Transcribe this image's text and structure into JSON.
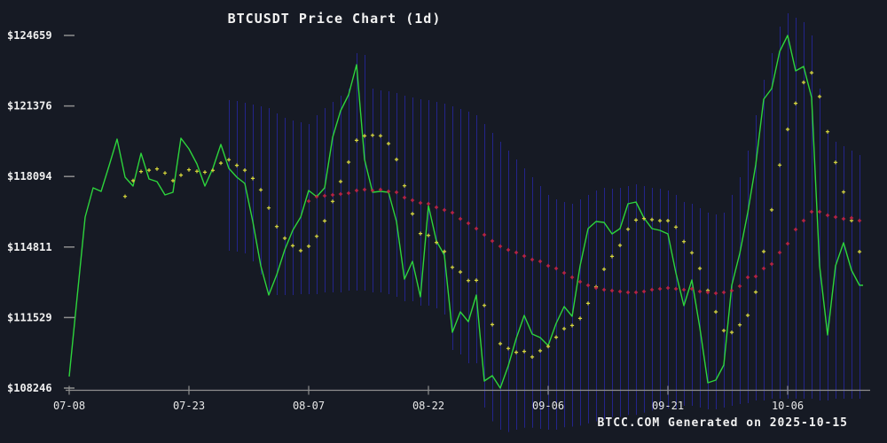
{
  "window": {
    "title": "BTCUSDT Price Chart (1d)"
  },
  "footer": {
    "credit": "BTCC.COM Generated on 2025-10-15"
  },
  "colors": {
    "background": "#161a24",
    "close_line": "#2dd43c",
    "ma7_dots": "#d9d93a",
    "ma30_dots": "#cf2340",
    "range_bars": "#23248a",
    "axis": "#8f8f8f",
    "label_text": "#f0f0f0"
  },
  "chart_data": {
    "type": "line",
    "title": "BTCUSDT Price Chart (1d)",
    "xlabel": "",
    "ylabel": "",
    "grid": "vertical-range-bars-only",
    "legend": "none",
    "x_start_date": "2025-07-08",
    "x_end_date": "2025-10-15",
    "days": 100,
    "y_ticks": [
      124659,
      121376,
      118094,
      114811,
      111529,
      108246
    ],
    "y_tick_labels": [
      "$124659",
      "$121376",
      "$118094",
      "$114811",
      "$111529",
      "$108246"
    ],
    "x_tick_indices": [
      0,
      15,
      30,
      45,
      60,
      75,
      90
    ],
    "x_tick_labels": [
      "07-08",
      "07-23",
      "08-07",
      "08-22",
      "09-06",
      "09-21",
      "10-06"
    ],
    "ylim": [
      108246,
      124659
    ],
    "series": [
      {
        "name": "close",
        "style": "line",
        "color": "#2dd43c",
        "values": [
          108781,
          112493,
          116205,
          117566,
          117401,
          118597,
          119834,
          118061,
          117648,
          119174,
          117978,
          117855,
          117236,
          117360,
          119875,
          119380,
          118679,
          117648,
          118473,
          119587,
          118473,
          118061,
          117772,
          115999,
          113937,
          112576,
          113524,
          114679,
          115586,
          116205,
          117442,
          117153,
          117566,
          119916,
          121154,
          121896,
          123298,
          118885,
          117360,
          117401,
          117360,
          115999,
          113318,
          114143,
          112493,
          116741,
          115092,
          114432,
          110844,
          111792,
          111339,
          112576,
          108576,
          108823,
          108246,
          109277,
          110555,
          111627,
          110761,
          110596,
          110225,
          111256,
          112040,
          111586,
          113937,
          115669,
          115999,
          115958,
          115421,
          115669,
          116824,
          116906,
          116164,
          115669,
          115586,
          115421,
          113607,
          112081,
          113277,
          111050,
          108493,
          108617,
          109318,
          113030,
          114514,
          116411,
          118638,
          121690,
          122185,
          123917,
          124659,
          123009,
          123216,
          121772,
          113937,
          110720,
          113937,
          115009,
          113731,
          113030
        ]
      },
      {
        "name": "ma7",
        "style": "cross-dots",
        "color": "#d9d93a",
        "derived": "moving-average-of-close",
        "window": 7,
        "start_index": 7
      },
      {
        "name": "ma30",
        "style": "cross-dots",
        "color": "#cf2340",
        "start_index": 30,
        "values": [
          116947,
          117153,
          117194,
          117236,
          117277,
          117318,
          117442,
          117483,
          117442,
          117483,
          117401,
          117360,
          117112,
          116989,
          116865,
          116824,
          116659,
          116535,
          116411,
          116123,
          115916,
          115669,
          115380,
          115092,
          114844,
          114679,
          114555,
          114391,
          114226,
          114143,
          113937,
          113814,
          113607,
          113401,
          113195,
          113030,
          112906,
          112824,
          112782,
          112741,
          112699,
          112699,
          112741,
          112824,
          112865,
          112906,
          112865,
          112824,
          112865,
          112741,
          112699,
          112658,
          112699,
          112782,
          112988,
          113401,
          113442,
          113813,
          114020,
          114556,
          114968,
          115627,
          116040,
          116452,
          116452,
          116287,
          116205,
          116123,
          116164,
          116040
        ]
      },
      {
        "name": "daily-range-band",
        "style": "vertical-bars",
        "color": "#23248a",
        "start_index": 20,
        "top": [
          121649,
          121607,
          121525,
          121442,
          121360,
          121277,
          121030,
          120824,
          120700,
          120617,
          120535,
          120947,
          121277,
          121566,
          121855,
          122185,
          123834,
          123751,
          122185,
          122102,
          122061,
          121978,
          121855,
          121772,
          121690,
          121649,
          121566,
          121483,
          121360,
          121236,
          121113,
          120947,
          120535,
          120123,
          119710,
          119298,
          118885,
          118473,
          118061,
          117648,
          117236,
          117030,
          116906,
          116824,
          117030,
          117236,
          117442,
          117566,
          117525,
          117566,
          117648,
          117731,
          117648,
          117566,
          117525,
          117442,
          117236,
          116906,
          116824,
          116617,
          116411,
          116329,
          116411,
          117236,
          118061,
          119298,
          120947,
          122597,
          123834,
          125071,
          125690,
          125483,
          125277,
          124659,
          122185,
          120123,
          119710,
          119504,
          119298,
          119092
        ],
        "bottom": [
          114638,
          114597,
          114514,
          114143,
          113524,
          112699,
          112576,
          112576,
          112576,
          112617,
          112617,
          112617,
          112699,
          112699,
          112699,
          112782,
          112782,
          112782,
          112699,
          112699,
          112617,
          112493,
          112287,
          112287,
          112081,
          112081,
          111957,
          111669,
          110019,
          109813,
          109400,
          109400,
          107339,
          106700,
          106309,
          106200,
          106309,
          106400,
          106400,
          106350,
          106309,
          106309,
          106420,
          106450,
          106500,
          106600,
          106700,
          106800,
          106900,
          106900,
          107000,
          107000,
          107100,
          107200,
          107250,
          107300,
          107300,
          107421,
          107421,
          107339,
          107257,
          107257,
          107339,
          107421,
          107504,
          107545,
          107669,
          107669,
          107751,
          107751,
          107751,
          107751,
          107751,
          107751,
          107669,
          107669,
          107751,
          107751,
          107751,
          107751
        ]
      }
    ]
  }
}
